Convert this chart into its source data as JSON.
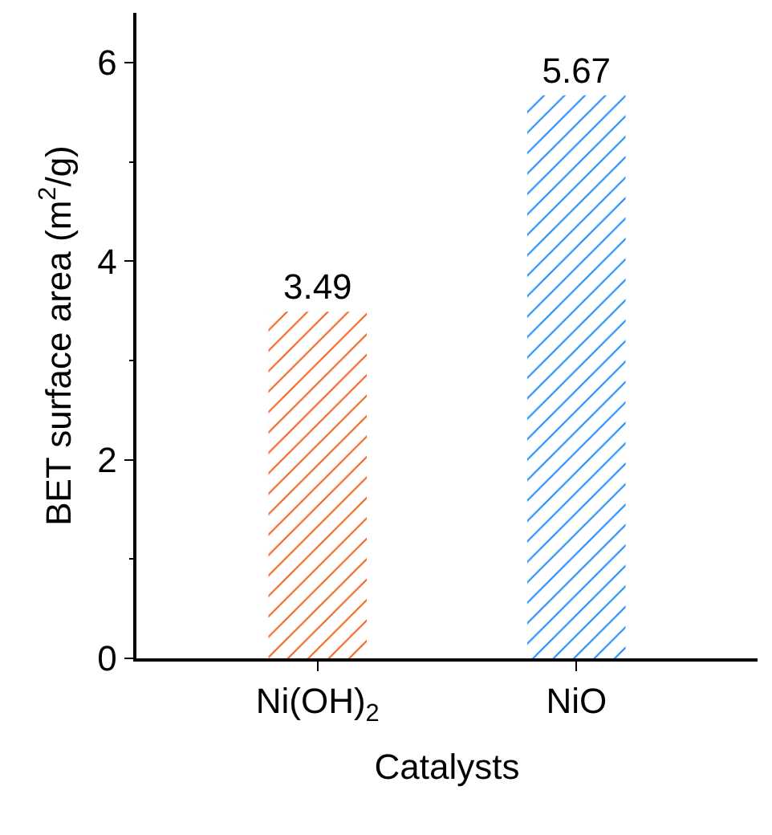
{
  "chart_data": {
    "type": "bar",
    "xlabel": "Catalysts",
    "ylabel": "BET surface area (m$^{2}$/g)",
    "categories": [
      "Ni(OH)$_{2}$",
      "NiO"
    ],
    "values": [
      3.49,
      5.67
    ],
    "colors": [
      "#f26522",
      "#1e8fff"
    ],
    "ylim": [
      0,
      6.5
    ],
    "yticks": [
      0,
      2,
      4,
      6
    ],
    "data_labels": true
  }
}
